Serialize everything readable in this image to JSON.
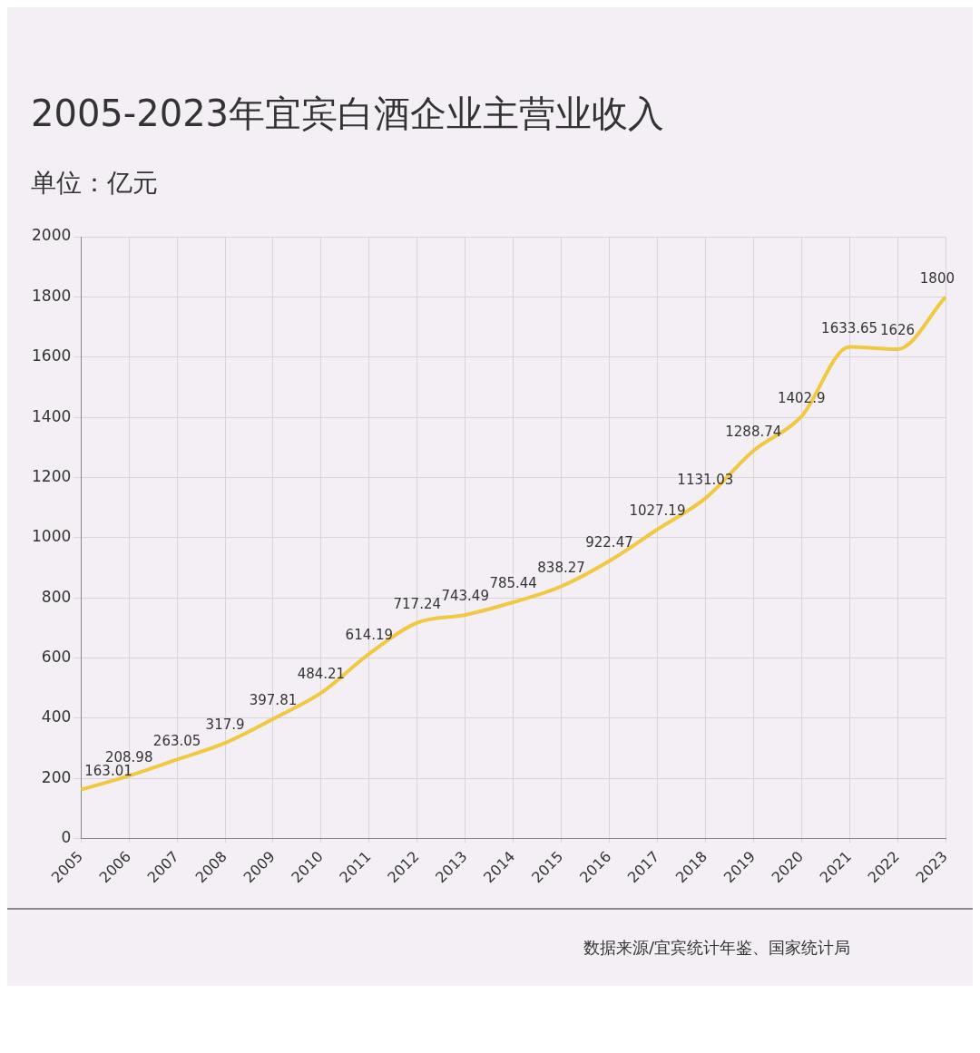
{
  "chart_data": {
    "type": "line",
    "title": "2005-2023年宜宾白酒企业主营业收入",
    "subtitle": "单位：亿元",
    "categories": [
      "2005",
      "2006",
      "2007",
      "2008",
      "2009",
      "2010",
      "2011",
      "2012",
      "2013",
      "2014",
      "2015",
      "2016",
      "2017",
      "2018",
      "2019",
      "2020",
      "2021",
      "2022",
      "2023"
    ],
    "series": [
      {
        "color": "#f0c842",
        "values": [
          163.01,
          208.98,
          263.05,
          317.9,
          397.81,
          484.21,
          614.19,
          717.24,
          743.49,
          785.44,
          838.27,
          922.47,
          1027.19,
          1131.03,
          1288.74,
          1402.9,
          1633.65,
          1626,
          1800
        ]
      }
    ],
    "ylim": [
      0,
      2000
    ],
    "yticks": [
      0,
      200,
      400,
      600,
      800,
      1000,
      1200,
      1400,
      1600,
      1800,
      2000
    ],
    "grid": true,
    "data_labels": true,
    "marker": "none",
    "line_style": "solid",
    "annotations": [
      "数据来源/宜宾统计年鉴、国家统计局"
    ]
  }
}
